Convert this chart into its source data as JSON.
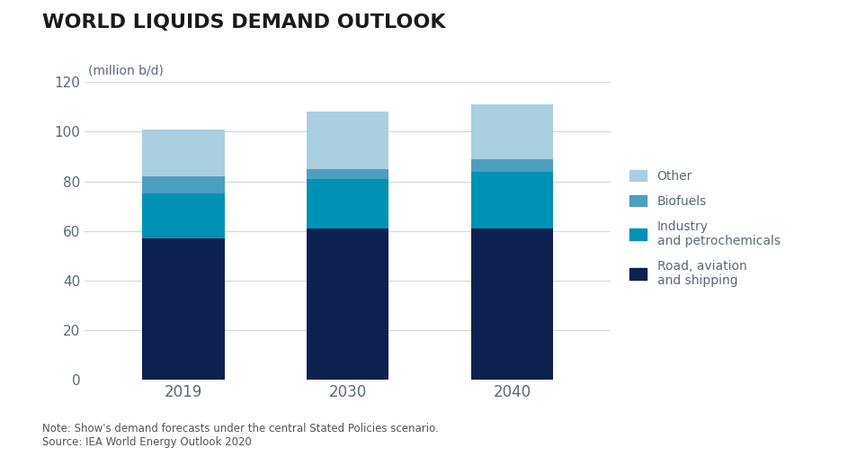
{
  "title": "WORLD LIQUIDS DEMAND OUTLOOK",
  "ylabel": "(million b/d)",
  "categories": [
    "2019",
    "2030",
    "2040"
  ],
  "series": {
    "Road, aviation\nand shipping": [
      57,
      61,
      61
    ],
    "Industry\nand petrochemicals": [
      18,
      20,
      23
    ],
    "Biofuels": [
      7,
      4,
      5
    ],
    "Other": [
      19,
      23,
      22
    ]
  },
  "colors": {
    "Road, aviation\nand shipping": "#0d2050",
    "Industry\nand petrochemicals": "#0092b5",
    "Biofuels": "#4d9fc0",
    "Other": "#aacfe0"
  },
  "legend_labels": {
    "Road, aviation\nand shipping": "Road, aviation\nand shipping",
    "Industry\nand petrochemicals": "Industry\nand petrochemicals",
    "Biofuels": "Biofuels",
    "Other": "Other"
  },
  "ylim": [
    0,
    120
  ],
  "yticks": [
    0,
    20,
    40,
    60,
    80,
    100,
    120
  ],
  "note": "Note: Show's demand forecasts under the central Stated Policies scenario.\nSource: IEA World Energy Outlook 2020",
  "background_color": "#ffffff",
  "bar_width": 0.5,
  "legend_text_color": "#5a6a7a",
  "tick_color": "#5a6a7a",
  "grid_color": "#d0d8de"
}
